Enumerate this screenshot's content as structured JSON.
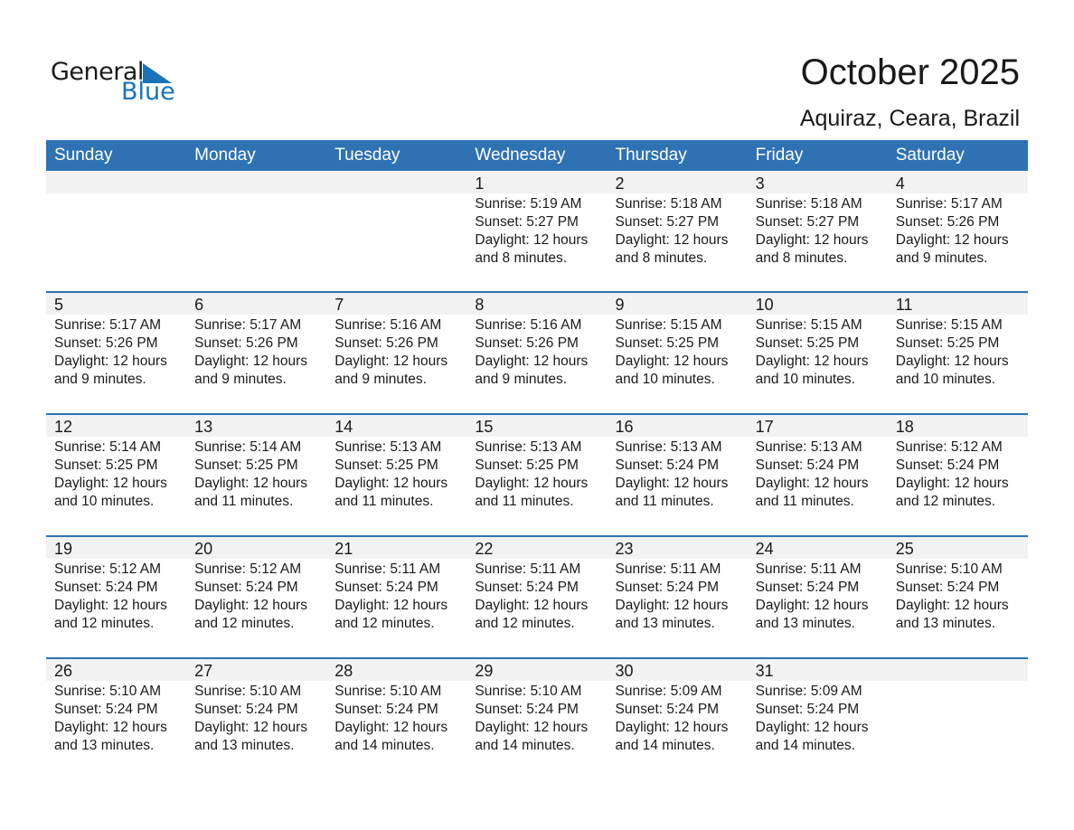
{
  "logo": {
    "general": "General",
    "blue": "Blue",
    "color": "#1a73b8"
  },
  "title": "October 2025",
  "subtitle": "Aquiraz, Ceara, Brazil",
  "header_color": "#2e72b4",
  "weekdays": [
    "Sunday",
    "Monday",
    "Tuesday",
    "Wednesday",
    "Thursday",
    "Friday",
    "Saturday"
  ],
  "weeks": [
    [
      null,
      null,
      null,
      {
        "day": "1",
        "sunrise": "Sunrise: 5:19 AM",
        "sunset": "Sunset: 5:27 PM",
        "daylight": "Daylight: 12 hours",
        "minutes": "and 8 minutes."
      },
      {
        "day": "2",
        "sunrise": "Sunrise: 5:18 AM",
        "sunset": "Sunset: 5:27 PM",
        "daylight": "Daylight: 12 hours",
        "minutes": "and 8 minutes."
      },
      {
        "day": "3",
        "sunrise": "Sunrise: 5:18 AM",
        "sunset": "Sunset: 5:27 PM",
        "daylight": "Daylight: 12 hours",
        "minutes": "and 8 minutes."
      },
      {
        "day": "4",
        "sunrise": "Sunrise: 5:17 AM",
        "sunset": "Sunset: 5:26 PM",
        "daylight": "Daylight: 12 hours",
        "minutes": "and 9 minutes."
      }
    ],
    [
      {
        "day": "5",
        "sunrise": "Sunrise: 5:17 AM",
        "sunset": "Sunset: 5:26 PM",
        "daylight": "Daylight: 12 hours",
        "minutes": "and 9 minutes."
      },
      {
        "day": "6",
        "sunrise": "Sunrise: 5:17 AM",
        "sunset": "Sunset: 5:26 PM",
        "daylight": "Daylight: 12 hours",
        "minutes": "and 9 minutes."
      },
      {
        "day": "7",
        "sunrise": "Sunrise: 5:16 AM",
        "sunset": "Sunset: 5:26 PM",
        "daylight": "Daylight: 12 hours",
        "minutes": "and 9 minutes."
      },
      {
        "day": "8",
        "sunrise": "Sunrise: 5:16 AM",
        "sunset": "Sunset: 5:26 PM",
        "daylight": "Daylight: 12 hours",
        "minutes": "and 9 minutes."
      },
      {
        "day": "9",
        "sunrise": "Sunrise: 5:15 AM",
        "sunset": "Sunset: 5:25 PM",
        "daylight": "Daylight: 12 hours",
        "minutes": "and 10 minutes."
      },
      {
        "day": "10",
        "sunrise": "Sunrise: 5:15 AM",
        "sunset": "Sunset: 5:25 PM",
        "daylight": "Daylight: 12 hours",
        "minutes": "and 10 minutes."
      },
      {
        "day": "11",
        "sunrise": "Sunrise: 5:15 AM",
        "sunset": "Sunset: 5:25 PM",
        "daylight": "Daylight: 12 hours",
        "minutes": "and 10 minutes."
      }
    ],
    [
      {
        "day": "12",
        "sunrise": "Sunrise: 5:14 AM",
        "sunset": "Sunset: 5:25 PM",
        "daylight": "Daylight: 12 hours",
        "minutes": "and 10 minutes."
      },
      {
        "day": "13",
        "sunrise": "Sunrise: 5:14 AM",
        "sunset": "Sunset: 5:25 PM",
        "daylight": "Daylight: 12 hours",
        "minutes": "and 11 minutes."
      },
      {
        "day": "14",
        "sunrise": "Sunrise: 5:13 AM",
        "sunset": "Sunset: 5:25 PM",
        "daylight": "Daylight: 12 hours",
        "minutes": "and 11 minutes."
      },
      {
        "day": "15",
        "sunrise": "Sunrise: 5:13 AM",
        "sunset": "Sunset: 5:25 PM",
        "daylight": "Daylight: 12 hours",
        "minutes": "and 11 minutes."
      },
      {
        "day": "16",
        "sunrise": "Sunrise: 5:13 AM",
        "sunset": "Sunset: 5:24 PM",
        "daylight": "Daylight: 12 hours",
        "minutes": "and 11 minutes."
      },
      {
        "day": "17",
        "sunrise": "Sunrise: 5:13 AM",
        "sunset": "Sunset: 5:24 PM",
        "daylight": "Daylight: 12 hours",
        "minutes": "and 11 minutes."
      },
      {
        "day": "18",
        "sunrise": "Sunrise: 5:12 AM",
        "sunset": "Sunset: 5:24 PM",
        "daylight": "Daylight: 12 hours",
        "minutes": "and 12 minutes."
      }
    ],
    [
      {
        "day": "19",
        "sunrise": "Sunrise: 5:12 AM",
        "sunset": "Sunset: 5:24 PM",
        "daylight": "Daylight: 12 hours",
        "minutes": "and 12 minutes."
      },
      {
        "day": "20",
        "sunrise": "Sunrise: 5:12 AM",
        "sunset": "Sunset: 5:24 PM",
        "daylight": "Daylight: 12 hours",
        "minutes": "and 12 minutes."
      },
      {
        "day": "21",
        "sunrise": "Sunrise: 5:11 AM",
        "sunset": "Sunset: 5:24 PM",
        "daylight": "Daylight: 12 hours",
        "minutes": "and 12 minutes."
      },
      {
        "day": "22",
        "sunrise": "Sunrise: 5:11 AM",
        "sunset": "Sunset: 5:24 PM",
        "daylight": "Daylight: 12 hours",
        "minutes": "and 12 minutes."
      },
      {
        "day": "23",
        "sunrise": "Sunrise: 5:11 AM",
        "sunset": "Sunset: 5:24 PM",
        "daylight": "Daylight: 12 hours",
        "minutes": "and 13 minutes."
      },
      {
        "day": "24",
        "sunrise": "Sunrise: 5:11 AM",
        "sunset": "Sunset: 5:24 PM",
        "daylight": "Daylight: 12 hours",
        "minutes": "and 13 minutes."
      },
      {
        "day": "25",
        "sunrise": "Sunrise: 5:10 AM",
        "sunset": "Sunset: 5:24 PM",
        "daylight": "Daylight: 12 hours",
        "minutes": "and 13 minutes."
      }
    ],
    [
      {
        "day": "26",
        "sunrise": "Sunrise: 5:10 AM",
        "sunset": "Sunset: 5:24 PM",
        "daylight": "Daylight: 12 hours",
        "minutes": "and 13 minutes."
      },
      {
        "day": "27",
        "sunrise": "Sunrise: 5:10 AM",
        "sunset": "Sunset: 5:24 PM",
        "daylight": "Daylight: 12 hours",
        "minutes": "and 13 minutes."
      },
      {
        "day": "28",
        "sunrise": "Sunrise: 5:10 AM",
        "sunset": "Sunset: 5:24 PM",
        "daylight": "Daylight: 12 hours",
        "minutes": "and 14 minutes."
      },
      {
        "day": "29",
        "sunrise": "Sunrise: 5:10 AM",
        "sunset": "Sunset: 5:24 PM",
        "daylight": "Daylight: 12 hours",
        "minutes": "and 14 minutes."
      },
      {
        "day": "30",
        "sunrise": "Sunrise: 5:09 AM",
        "sunset": "Sunset: 5:24 PM",
        "daylight": "Daylight: 12 hours",
        "minutes": "and 14 minutes."
      },
      {
        "day": "31",
        "sunrise": "Sunrise: 5:09 AM",
        "sunset": "Sunset: 5:24 PM",
        "daylight": "Daylight: 12 hours",
        "minutes": "and 14 minutes."
      },
      null
    ]
  ]
}
